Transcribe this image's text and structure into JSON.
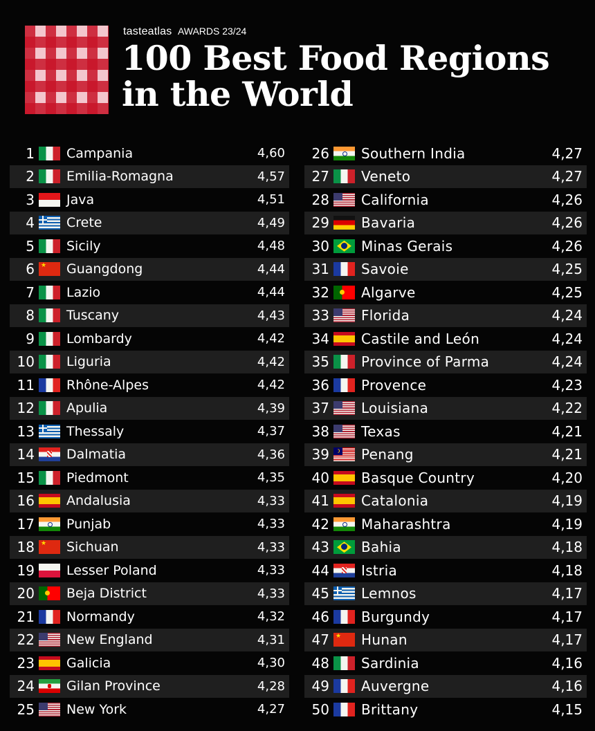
{
  "header": {
    "brand": "tasteatlas",
    "awards": "AWARDS 23/24",
    "title_line1": "100 Best Food Regions",
    "title_line2": "in the World"
  },
  "left_rows": [
    {
      "rank": "1",
      "flag": "italy-flag",
      "name": "Campania",
      "score": "4,60"
    },
    {
      "rank": "2",
      "flag": "italy-flag",
      "name": "Emilia-Romagna",
      "score": "4,57"
    },
    {
      "rank": "3",
      "flag": "indonesia-flag",
      "name": "Java",
      "score": "4,51"
    },
    {
      "rank": "4",
      "flag": "greece-flag",
      "name": "Crete",
      "score": "4,49"
    },
    {
      "rank": "5",
      "flag": "italy-flag",
      "name": "Sicily",
      "score": "4,48"
    },
    {
      "rank": "6",
      "flag": "china-flag",
      "name": "Guangdong",
      "score": "4,44"
    },
    {
      "rank": "7",
      "flag": "italy-flag",
      "name": "Lazio",
      "score": "4,44"
    },
    {
      "rank": "8",
      "flag": "italy-flag",
      "name": "Tuscany",
      "score": "4,43"
    },
    {
      "rank": "9",
      "flag": "italy-flag",
      "name": "Lombardy",
      "score": "4,42"
    },
    {
      "rank": "10",
      "flag": "italy-flag",
      "name": "Liguria",
      "score": "4,42"
    },
    {
      "rank": "11",
      "flag": "france-flag",
      "name": "Rhône-Alpes",
      "score": "4,42"
    },
    {
      "rank": "12",
      "flag": "italy-flag",
      "name": "Apulia",
      "score": "4,39"
    },
    {
      "rank": "13",
      "flag": "greece-flag",
      "name": "Thessaly",
      "score": "4,37"
    },
    {
      "rank": "14",
      "flag": "croatia-flag",
      "name": "Dalmatia",
      "score": "4,36"
    },
    {
      "rank": "15",
      "flag": "italy-flag",
      "name": "Piedmont",
      "score": "4,35"
    },
    {
      "rank": "16",
      "flag": "spain-flag",
      "name": "Andalusia",
      "score": "4,33"
    },
    {
      "rank": "17",
      "flag": "india-flag",
      "name": "Punjab",
      "score": "4,33"
    },
    {
      "rank": "18",
      "flag": "china-flag",
      "name": "Sichuan",
      "score": "4,33"
    },
    {
      "rank": "19",
      "flag": "poland-flag",
      "name": "Lesser Poland",
      "score": "4,33"
    },
    {
      "rank": "20",
      "flag": "portugal-flag",
      "name": "Beja District",
      "score": "4,33"
    },
    {
      "rank": "21",
      "flag": "france-flag",
      "name": "Normandy",
      "score": "4,32"
    },
    {
      "rank": "22",
      "flag": "usa-flag",
      "name": "New England",
      "score": "4,31"
    },
    {
      "rank": "23",
      "flag": "spain-flag",
      "name": "Galicia",
      "score": "4,30"
    },
    {
      "rank": "24",
      "flag": "iran-flag",
      "name": "Gilan Province",
      "score": "4,28"
    },
    {
      "rank": "25",
      "flag": "usa-flag",
      "name": "New York",
      "score": "4,27"
    }
  ],
  "right_rows": [
    {
      "rank": "26",
      "flag": "india-flag",
      "name": "Southern India",
      "score": "4,27"
    },
    {
      "rank": "27",
      "flag": "italy-flag",
      "name": "Veneto",
      "score": "4,27"
    },
    {
      "rank": "28",
      "flag": "usa-flag",
      "name": "California",
      "score": "4,26"
    },
    {
      "rank": "29",
      "flag": "germany-flag",
      "name": "Bavaria",
      "score": "4,26"
    },
    {
      "rank": "30",
      "flag": "brazil-flag",
      "name": "Minas Gerais",
      "score": "4,26"
    },
    {
      "rank": "31",
      "flag": "france-flag",
      "name": "Savoie",
      "score": "4,25"
    },
    {
      "rank": "32",
      "flag": "portugal-flag",
      "name": "Algarve",
      "score": "4,25"
    },
    {
      "rank": "33",
      "flag": "usa-flag",
      "name": "Florida",
      "score": "4,24"
    },
    {
      "rank": "34",
      "flag": "spain-flag",
      "name": "Castile and León",
      "score": "4,24"
    },
    {
      "rank": "35",
      "flag": "italy-flag",
      "name": "Province of Parma",
      "score": "4,24"
    },
    {
      "rank": "36",
      "flag": "france-flag",
      "name": "Provence",
      "score": "4,23"
    },
    {
      "rank": "37",
      "flag": "usa-flag",
      "name": "Louisiana",
      "score": "4,22"
    },
    {
      "rank": "38",
      "flag": "usa-flag",
      "name": "Texas",
      "score": "4,21"
    },
    {
      "rank": "39",
      "flag": "malaysia-flag",
      "name": "Penang",
      "score": "4,21"
    },
    {
      "rank": "40",
      "flag": "spain-flag",
      "name": "Basque Country",
      "score": "4,20"
    },
    {
      "rank": "41",
      "flag": "spain-flag",
      "name": "Catalonia",
      "score": "4,19"
    },
    {
      "rank": "42",
      "flag": "india-flag",
      "name": "Maharashtra",
      "score": "4,19"
    },
    {
      "rank": "43",
      "flag": "brazil-flag",
      "name": "Bahia",
      "score": "4,18"
    },
    {
      "rank": "44",
      "flag": "croatia-flag",
      "name": "Istria",
      "score": "4,18"
    },
    {
      "rank": "45",
      "flag": "greece-flag",
      "name": "Lemnos",
      "score": "4,17"
    },
    {
      "rank": "46",
      "flag": "france-flag",
      "name": "Burgundy",
      "score": "4,17"
    },
    {
      "rank": "47",
      "flag": "china-flag",
      "name": "Hunan",
      "score": "4,17"
    },
    {
      "rank": "48",
      "flag": "italy-flag",
      "name": "Sardinia",
      "score": "4,16"
    },
    {
      "rank": "49",
      "flag": "france-flag",
      "name": "Auvergne",
      "score": "4,16"
    },
    {
      "rank": "50",
      "flag": "france-flag",
      "name": "Brittany",
      "score": "4,15"
    }
  ]
}
